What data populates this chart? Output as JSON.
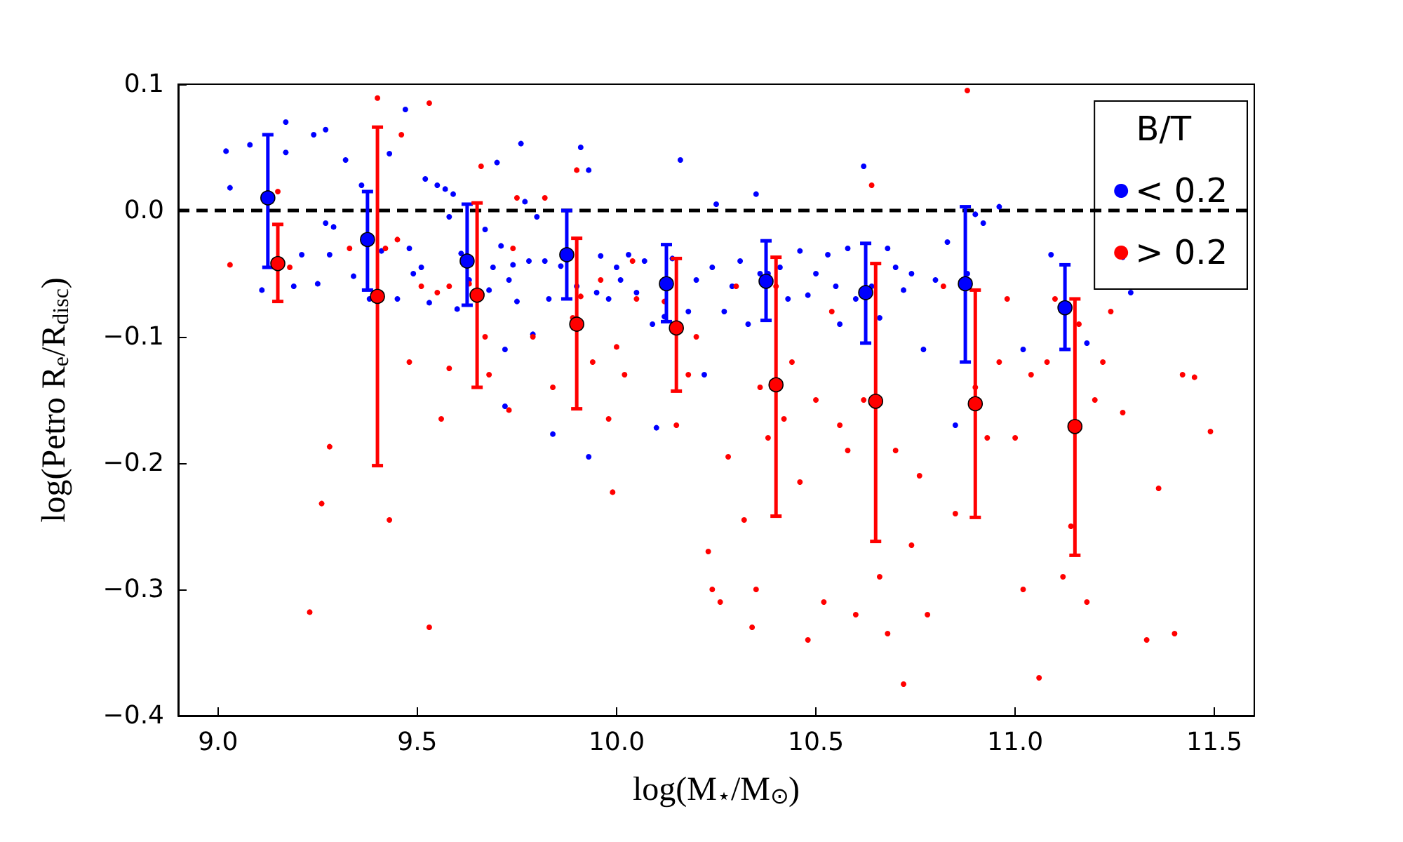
{
  "chart_data": {
    "type": "scatter",
    "xlabel": "log(M$_{⋆}$/M$_{⊙}$)",
    "ylabel": "log(Petro R$_{e}$/R$_{disc}$)",
    "legend_title": "B/T",
    "legend": "top right",
    "marker": "circle",
    "xlim": [
      8.9,
      11.6
    ],
    "ylim": [
      -0.4,
      0.1
    ],
    "xticks": [
      {
        "value": 9,
        "label": "9.0"
      },
      9.5,
      {
        "value": 10,
        "label": "10.0"
      },
      10.5,
      {
        "value": 11,
        "label": "11.0"
      },
      11.5
    ],
    "yticks": [
      {
        "value": -0.4,
        "label": "−0.4"
      },
      {
        "value": -0.3,
        "label": "−0.3"
      },
      {
        "value": -0.2,
        "label": "−0.2"
      },
      {
        "value": -0.1,
        "label": "−0.1"
      },
      {
        "value": 0,
        "label": "0.0"
      },
      0.1
    ],
    "ref_lines": [
      {
        "axis": "y",
        "value": 0,
        "color": "#000000",
        "line_style": "dashed"
      }
    ],
    "series": [
      {
        "name": "< 0.2",
        "color": "#0000ff",
        "x": [
          9.02,
          9.03,
          9.08,
          9.11,
          9.17,
          9.17,
          9.19,
          9.21,
          9.24,
          9.25,
          9.27,
          9.27,
          9.28,
          9.29,
          9.32,
          9.34,
          9.36,
          9.38,
          9.41,
          9.43,
          9.45,
          9.47,
          9.48,
          9.49,
          9.51,
          9.52,
          9.53,
          9.55,
          9.57,
          9.58,
          9.59,
          9.6,
          9.61,
          9.63,
          9.67,
          9.68,
          9.69,
          9.7,
          9.71,
          9.72,
          9.72,
          9.73,
          9.74,
          9.75,
          9.76,
          9.77,
          9.78,
          9.79,
          9.8,
          9.82,
          9.83,
          9.84,
          9.86,
          9.9,
          9.91,
          9.93,
          9.93,
          9.95,
          9.96,
          9.98,
          10.0,
          10.01,
          10.03,
          10.05,
          10.07,
          10.09,
          10.1,
          10.12,
          10.14,
          10.16,
          10.18,
          10.2,
          10.22,
          10.24,
          10.25,
          10.27,
          10.29,
          10.31,
          10.33,
          10.35,
          10.36,
          10.38,
          10.41,
          10.43,
          10.46,
          10.48,
          10.5,
          10.53,
          10.55,
          10.56,
          10.58,
          10.6,
          10.62,
          10.64,
          10.66,
          10.68,
          10.7,
          10.72,
          10.74,
          10.77,
          10.8,
          10.83,
          10.85,
          10.88,
          10.9,
          10.92,
          10.96,
          11.02,
          11.09,
          11.18,
          11.27,
          11.29
        ],
        "values": [
          0.047,
          0.018,
          0.052,
          -0.063,
          0.07,
          0.046,
          -0.06,
          -0.035,
          0.06,
          -0.058,
          0.064,
          -0.01,
          -0.035,
          -0.013,
          0.04,
          -0.052,
          0.02,
          -0.07,
          -0.032,
          0.045,
          -0.07,
          0.08,
          -0.03,
          -0.05,
          -0.045,
          0.025,
          -0.073,
          0.02,
          0.017,
          -0.005,
          0.013,
          -0.078,
          -0.034,
          -0.055,
          -0.015,
          -0.063,
          -0.045,
          0.038,
          -0.028,
          -0.11,
          -0.155,
          -0.055,
          -0.043,
          -0.072,
          0.053,
          0.007,
          -0.04,
          -0.098,
          -0.005,
          -0.04,
          -0.07,
          -0.177,
          -0.044,
          -0.06,
          0.05,
          -0.195,
          0.032,
          -0.065,
          -0.036,
          -0.07,
          -0.045,
          -0.055,
          -0.035,
          -0.065,
          -0.04,
          -0.09,
          -0.172,
          -0.084,
          -0.038,
          0.04,
          -0.08,
          -0.055,
          -0.13,
          -0.045,
          0.005,
          -0.08,
          -0.06,
          -0.04,
          -0.09,
          0.013,
          -0.05,
          -0.05,
          -0.045,
          -0.07,
          -0.032,
          -0.067,
          -0.05,
          -0.035,
          -0.06,
          -0.09,
          -0.03,
          -0.07,
          0.035,
          -0.06,
          -0.085,
          -0.03,
          -0.045,
          -0.063,
          -0.05,
          -0.11,
          -0.055,
          -0.025,
          -0.17,
          -0.05,
          -0.003,
          -0.01,
          0.003,
          -0.11,
          -0.035,
          -0.105,
          -0.037,
          -0.065
        ]
      },
      {
        "name": "> 0.2",
        "color": "#ff0000",
        "x": [
          9.03,
          9.15,
          9.18,
          9.23,
          9.26,
          9.28,
          9.33,
          9.4,
          9.42,
          9.43,
          9.45,
          9.46,
          9.48,
          9.51,
          9.53,
          9.53,
          9.55,
          9.56,
          9.58,
          9.58,
          9.63,
          9.66,
          9.67,
          9.68,
          9.73,
          9.74,
          9.75,
          9.79,
          9.82,
          9.84,
          9.89,
          9.9,
          9.91,
          9.94,
          9.96,
          9.98,
          9.99,
          10.0,
          10.02,
          10.04,
          10.05,
          10.12,
          10.15,
          10.18,
          10.2,
          10.23,
          10.24,
          10.26,
          10.28,
          10.3,
          10.32,
          10.34,
          10.35,
          10.36,
          10.38,
          10.4,
          10.42,
          10.44,
          10.46,
          10.48,
          10.5,
          10.52,
          10.54,
          10.56,
          10.58,
          10.6,
          10.62,
          10.64,
          10.66,
          10.68,
          10.7,
          10.72,
          10.74,
          10.76,
          10.78,
          10.82,
          10.85,
          10.88,
          10.9,
          10.93,
          10.96,
          10.98,
          11.0,
          11.02,
          11.04,
          11.06,
          11.08,
          11.1,
          11.12,
          11.14,
          11.16,
          11.18,
          11.2,
          11.22,
          11.24,
          11.27,
          11.33,
          11.36,
          11.4,
          11.42,
          11.45,
          11.49
        ],
        "values": [
          -0.043,
          0.015,
          -0.045,
          -0.318,
          -0.232,
          -0.187,
          -0.03,
          0.089,
          -0.03,
          -0.245,
          -0.023,
          0.06,
          -0.12,
          -0.06,
          0.085,
          -0.33,
          -0.065,
          -0.165,
          -0.125,
          -0.06,
          -0.058,
          0.035,
          -0.1,
          -0.13,
          -0.158,
          -0.03,
          0.01,
          -0.1,
          0.01,
          -0.14,
          -0.085,
          0.032,
          -0.068,
          -0.12,
          -0.055,
          -0.165,
          -0.223,
          -0.108,
          -0.13,
          -0.04,
          -0.07,
          -0.072,
          -0.17,
          -0.13,
          -0.1,
          -0.27,
          -0.3,
          -0.31,
          -0.195,
          -0.06,
          -0.245,
          -0.33,
          -0.3,
          -0.14,
          -0.18,
          -0.06,
          -0.165,
          -0.12,
          -0.215,
          -0.34,
          -0.15,
          -0.31,
          -0.08,
          -0.17,
          -0.19,
          -0.32,
          -0.15,
          0.02,
          -0.29,
          -0.335,
          -0.19,
          -0.375,
          -0.265,
          -0.21,
          -0.32,
          -0.06,
          -0.24,
          0.095,
          -0.14,
          -0.18,
          -0.12,
          -0.07,
          -0.18,
          -0.3,
          -0.13,
          -0.37,
          -0.12,
          -0.07,
          -0.29,
          -0.25,
          -0.09,
          -0.31,
          -0.15,
          -0.12,
          -0.08,
          -0.16,
          -0.34,
          -0.22,
          -0.335,
          -0.13,
          -0.132,
          -0.175
        ]
      },
      {
        "color": "#0000ff",
        "x": [
          9.125,
          9.375,
          9.625,
          9.875,
          10.125,
          10.375,
          10.625,
          10.875,
          11.125
        ],
        "values": [
          0.01,
          -0.023,
          -0.04,
          -0.035,
          -0.058,
          -0.056,
          -0.065,
          -0.058,
          -0.077
        ],
        "errors": [
          [
            -0.045,
            0.06
          ],
          [
            -0.063,
            0.015
          ],
          [
            -0.075,
            0.005
          ],
          [
            -0.07,
            0.0
          ],
          [
            -0.088,
            -0.027
          ],
          [
            -0.087,
            -0.024
          ],
          [
            -0.105,
            -0.026
          ],
          [
            -0.12,
            0.003
          ],
          [
            -0.11,
            -0.043
          ]
        ]
      },
      {
        "color": "#ff0000",
        "x": [
          9.15,
          9.4,
          9.65,
          9.9,
          10.15,
          10.4,
          10.65,
          10.9,
          11.15
        ],
        "values": [
          -0.042,
          -0.068,
          -0.067,
          -0.09,
          -0.093,
          -0.138,
          -0.151,
          -0.153,
          -0.171
        ],
        "errors": [
          [
            -0.072,
            -0.011
          ],
          [
            -0.202,
            0.066
          ],
          [
            -0.14,
            0.006
          ],
          [
            -0.157,
            -0.022
          ],
          [
            -0.143,
            -0.038
          ],
          [
            -0.242,
            -0.037
          ],
          [
            -0.262,
            -0.042
          ],
          [
            -0.243,
            -0.063
          ],
          [
            -0.273,
            -0.07
          ]
        ]
      }
    ]
  }
}
